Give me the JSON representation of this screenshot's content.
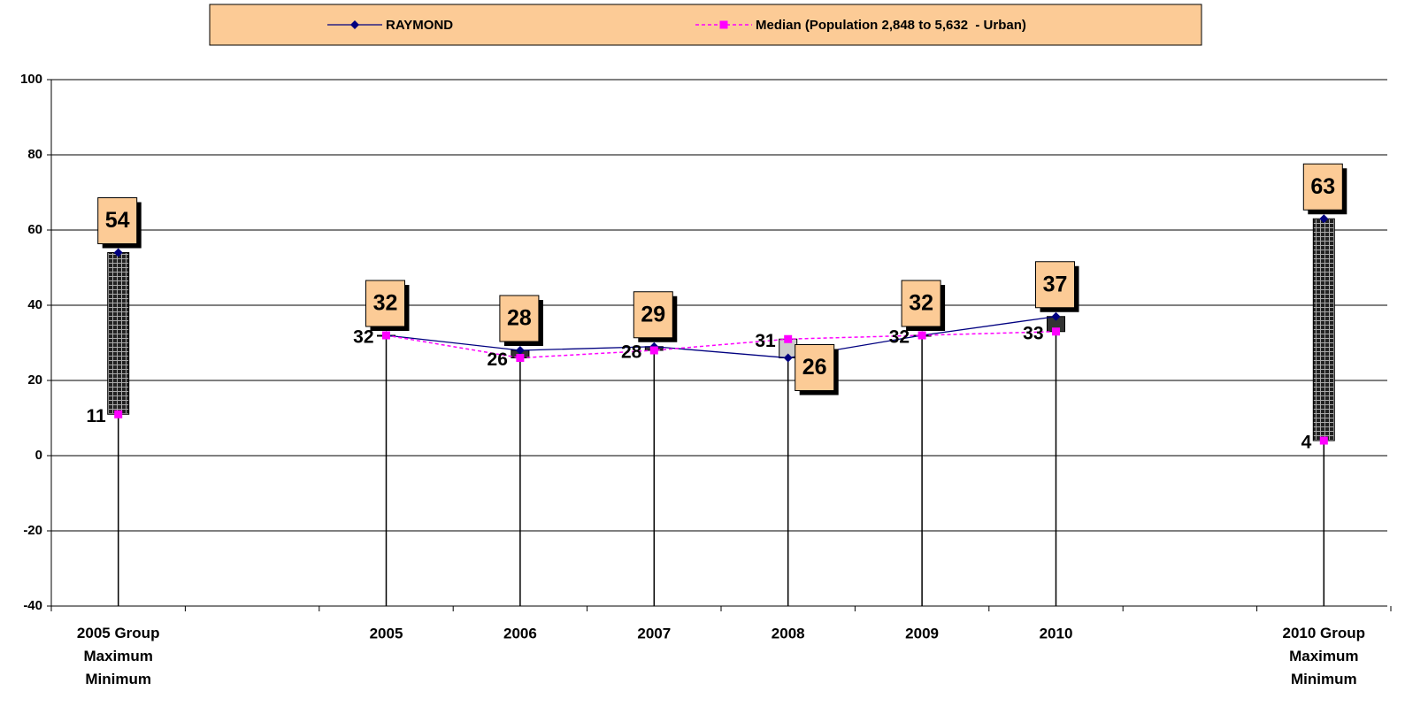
{
  "chart_data": {
    "type": "line",
    "categories": [
      "2005 Group\nMaximum\nMinimum",
      null,
      "2005",
      "2006",
      "2007",
      "2008",
      "2009",
      "2010",
      null,
      "2010 Group\nMaximum\nMinimum"
    ],
    "series": [
      {
        "name": "RAYMOND",
        "color": "#000080",
        "values": [
          54,
          null,
          32,
          28,
          29,
          26,
          32,
          37,
          null,
          63
        ]
      },
      {
        "name": "Median (Population 2,848 to 5,632  - Urban)",
        "color": "#ff00ff",
        "values": [
          11,
          null,
          32,
          26,
          28,
          31,
          32,
          33,
          null,
          4
        ]
      }
    ],
    "ylim": [
      -40,
      100
    ],
    "yticks": [
      -40,
      -20,
      0,
      20,
      40,
      60,
      80,
      100
    ],
    "grid": true,
    "legend": "top"
  }
}
